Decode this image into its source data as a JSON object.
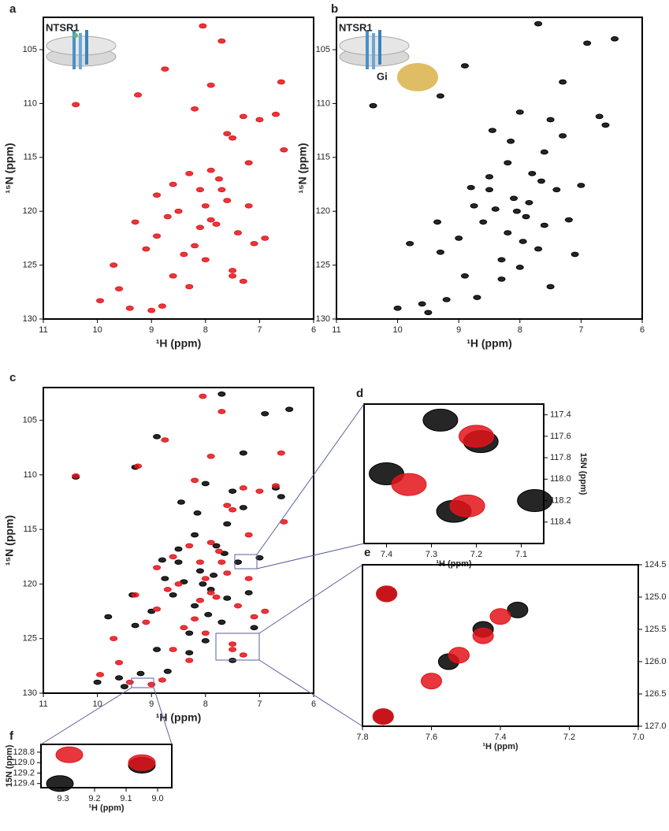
{
  "chart_data": [
    {
      "type": "scatter",
      "panel": "a",
      "annotations": [
        "NTSR1"
      ],
      "xlabel": "¹H (ppm)",
      "ylabel": "¹⁵N (ppm)",
      "xlim": [
        11,
        6
      ],
      "ylim": [
        102,
        130
      ],
      "xticks": [
        11,
        10,
        9,
        8,
        7,
        6
      ],
      "yticks": [
        105,
        110,
        115,
        120,
        125,
        130
      ],
      "y_axis_side": "left",
      "series": [
        {
          "color": "#e3141b",
          "x": [
            8.05,
            7.7,
            8.75,
            7.9,
            10.4,
            9.25,
            8.2,
            7.3,
            7.0,
            6.7,
            6.55,
            7.6,
            7.5,
            7.9,
            8.3,
            8.6,
            8.9,
            7.7,
            8.0,
            8.5,
            8.1,
            7.8,
            7.4,
            7.1,
            8.9,
            9.1,
            8.4,
            8.0,
            7.5,
            8.2,
            7.9,
            7.6,
            8.7,
            9.3,
            8.1,
            7.75,
            7.5,
            9.6,
            9.95,
            9.4,
            9.0,
            8.8,
            8.3,
            7.3,
            6.9,
            7.2,
            9.7,
            8.6,
            7.2,
            6.6
          ],
          "values": [
            102.8,
            104.2,
            106.8,
            108.3,
            110.1,
            109.2,
            110.5,
            111.2,
            111.5,
            111.0,
            114.3,
            112.8,
            113.2,
            116.2,
            116.5,
            117.5,
            118.5,
            118.0,
            119.5,
            120.0,
            121.5,
            121.2,
            122.0,
            123.0,
            122.3,
            123.5,
            124.0,
            124.5,
            125.5,
            123.2,
            120.8,
            119.0,
            120.5,
            121.0,
            118.0,
            117.0,
            126.0,
            127.2,
            128.3,
            129.0,
            129.2,
            128.8,
            127.0,
            126.5,
            122.5,
            119.5,
            125.0,
            126.0,
            115.5,
            108.0
          ]
        }
      ]
    },
    {
      "type": "scatter",
      "panel": "b",
      "annotations": [
        "NTSR1",
        "Gi"
      ],
      "xlabel": "¹H (ppm)",
      "ylabel": "¹⁵N (ppm)",
      "xlim": [
        11,
        6
      ],
      "ylim": [
        102,
        130
      ],
      "xticks": [
        11,
        10,
        9,
        8,
        7,
        6
      ],
      "yticks": [
        105,
        110,
        115,
        120,
        125,
        130
      ],
      "y_axis_side": "left",
      "series": [
        {
          "color": "#000000",
          "x": [
            7.7,
            6.9,
            6.45,
            8.9,
            7.3,
            10.4,
            9.3,
            8.0,
            7.5,
            6.7,
            7.3,
            7.6,
            8.2,
            8.5,
            8.8,
            7.8,
            8.1,
            8.4,
            7.9,
            7.6,
            8.6,
            9.0,
            9.3,
            8.2,
            7.7,
            7.1,
            8.0,
            8.3,
            7.5,
            8.9,
            9.2,
            9.6,
            10.0,
            9.5,
            8.7,
            7.4,
            7.0,
            8.05,
            8.5,
            7.85,
            7.95,
            8.3,
            6.6,
            7.2,
            9.8,
            8.15,
            7.65,
            8.75,
            9.35,
            8.45
          ],
          "values": [
            102.6,
            104.4,
            104.0,
            106.5,
            108.0,
            110.2,
            109.3,
            110.8,
            111.5,
            111.2,
            113.0,
            114.5,
            115.5,
            116.8,
            117.8,
            116.5,
            118.8,
            119.8,
            120.5,
            121.3,
            121.0,
            122.5,
            123.8,
            122.0,
            123.5,
            124.0,
            125.2,
            126.3,
            127.0,
            126.0,
            128.2,
            128.6,
            129.0,
            129.4,
            128.0,
            118.0,
            117.6,
            120.0,
            118.0,
            119.2,
            122.8,
            124.5,
            112.0,
            120.8,
            123.0,
            113.5,
            117.2,
            119.5,
            121.0,
            112.5
          ]
        }
      ]
    },
    {
      "type": "scatter",
      "panel": "c",
      "xlabel": "¹H (ppm)",
      "ylabel": "¹⁵N (ppm)",
      "xlim": [
        11,
        6
      ],
      "ylim": [
        102,
        130
      ],
      "xticks": [
        11,
        10,
        9,
        8,
        7,
        6
      ],
      "yticks": [
        105,
        110,
        115,
        120,
        125,
        130
      ],
      "y_axis_side": "left",
      "series": [
        {
          "color": "#000000",
          "x": [
            7.7,
            6.9,
            6.45,
            8.9,
            7.3,
            10.4,
            9.3,
            8.0,
            7.5,
            6.7,
            7.3,
            7.6,
            8.2,
            8.5,
            8.8,
            7.8,
            8.1,
            8.4,
            7.9,
            7.6,
            8.6,
            9.0,
            9.3,
            8.2,
            7.7,
            7.1,
            8.0,
            8.3,
            7.5,
            8.9,
            9.2,
            9.6,
            10.0,
            9.5,
            8.7,
            7.4,
            7.0,
            8.05,
            8.5,
            7.85,
            7.95,
            8.3,
            6.6,
            7.2,
            9.8,
            8.15,
            7.65,
            8.75,
            9.35,
            8.45
          ],
          "values": [
            102.6,
            104.4,
            104.0,
            106.5,
            108.0,
            110.2,
            109.3,
            110.8,
            111.5,
            111.2,
            113.0,
            114.5,
            115.5,
            116.8,
            117.8,
            116.5,
            118.8,
            119.8,
            120.5,
            121.3,
            121.0,
            122.5,
            123.8,
            122.0,
            123.5,
            124.0,
            125.2,
            126.3,
            127.0,
            126.0,
            128.2,
            128.6,
            129.0,
            129.4,
            128.0,
            118.0,
            117.6,
            120.0,
            118.0,
            119.2,
            122.8,
            124.5,
            112.0,
            120.8,
            123.0,
            113.5,
            117.2,
            119.5,
            121.0,
            112.5
          ]
        },
        {
          "color": "#e3141b",
          "x": [
            8.05,
            7.7,
            8.75,
            7.9,
            10.4,
            9.25,
            8.2,
            7.3,
            7.0,
            6.7,
            6.55,
            7.6,
            7.5,
            7.9,
            8.3,
            8.6,
            8.9,
            7.7,
            8.0,
            8.5,
            8.1,
            7.8,
            7.4,
            7.1,
            8.9,
            9.1,
            8.4,
            8.0,
            7.5,
            8.2,
            7.9,
            7.6,
            8.7,
            9.3,
            8.1,
            7.75,
            7.5,
            9.6,
            9.95,
            9.4,
            9.0,
            8.8,
            8.3,
            7.3,
            6.9,
            7.2,
            9.7,
            8.6,
            7.2,
            6.6
          ],
          "values": [
            102.8,
            104.2,
            106.8,
            108.3,
            110.1,
            109.2,
            110.5,
            111.2,
            111.5,
            111.0,
            114.3,
            112.8,
            113.2,
            116.2,
            116.5,
            117.5,
            118.5,
            118.0,
            119.5,
            120.0,
            121.5,
            121.2,
            122.0,
            123.0,
            122.3,
            123.5,
            124.0,
            124.5,
            125.5,
            123.2,
            120.8,
            119.0,
            120.5,
            121.0,
            118.0,
            117.0,
            126.0,
            127.2,
            128.3,
            129.0,
            129.2,
            128.8,
            127.0,
            126.5,
            122.5,
            119.5,
            125.0,
            126.0,
            115.5,
            108.0
          ]
        }
      ]
    },
    {
      "type": "scatter",
      "panel": "d",
      "xlabel": "¹H (ppm)",
      "ylabel": "15N (ppm)",
      "xlim": [
        7.45,
        7.05
      ],
      "ylim": [
        117.3,
        118.6
      ],
      "xticks": [
        7.4,
        7.3,
        7.2,
        7.1
      ],
      "yticks": [
        117.4,
        117.6,
        117.8,
        {
          "value": 118,
          "label": "118.0"
        },
        118.2,
        118.4
      ],
      "y_axis_side": "right",
      "series": [
        {
          "color": "#000000",
          "x": [
            7.28,
            7.19,
            7.4,
            7.25,
            7.07
          ],
          "values": [
            117.45,
            117.65,
            117.95,
            118.3,
            118.2
          ]
        },
        {
          "color": "#e3141b",
          "x": [
            7.35,
            7.2,
            7.22
          ],
          "values": [
            118.05,
            117.6,
            118.25
          ]
        }
      ]
    },
    {
      "type": "scatter",
      "panel": "e",
      "xlabel": "¹H (ppm)",
      "ylabel": "15N (ppm)",
      "xlim": [
        7.8,
        7.0
      ],
      "ylim": [
        124.5,
        127.0
      ],
      "xticks": [
        7.8,
        7.6,
        7.4,
        7.2,
        {
          "value": 7,
          "label": "7.0"
        }
      ],
      "yticks": [
        124.5,
        {
          "value": 125,
          "label": "125.0"
        },
        125.5,
        {
          "value": 126,
          "label": "126.0"
        },
        126.5,
        {
          "value": 127,
          "label": "127.0"
        }
      ],
      "y_axis_side": "right",
      "series": [
        {
          "color": "#000000",
          "x": [
            7.73,
            7.74,
            7.55,
            7.45,
            7.35
          ],
          "values": [
            124.95,
            126.85,
            126.0,
            125.5,
            125.2
          ]
        },
        {
          "color": "#e3141b",
          "x": [
            7.73,
            7.74,
            7.6,
            7.52,
            7.45,
            7.4
          ],
          "values": [
            124.95,
            126.85,
            126.3,
            125.9,
            125.6,
            125.3
          ]
        }
      ]
    },
    {
      "type": "scatter",
      "panel": "f",
      "xlabel": "¹H (ppm)",
      "ylabel": "15N (ppm)",
      "xlim": [
        9.37,
        8.955
      ],
      "ylim": [
        128.65,
        129.48
      ],
      "xticks": [
        9.3,
        9.2,
        9.1,
        {
          "value": 9,
          "label": "9.0"
        }
      ],
      "yticks": [
        128.8,
        {
          "value": 129,
          "label": "129.0"
        },
        129.2,
        129.4
      ],
      "y_axis_side": "left",
      "series": [
        {
          "color": "#000000",
          "x": [
            9.31,
            9.05
          ],
          "values": [
            129.4,
            129.05
          ]
        },
        {
          "color": "#e3141b",
          "x": [
            9.28,
            9.05
          ],
          "values": [
            128.85,
            129.0
          ]
        }
      ]
    }
  ]
}
